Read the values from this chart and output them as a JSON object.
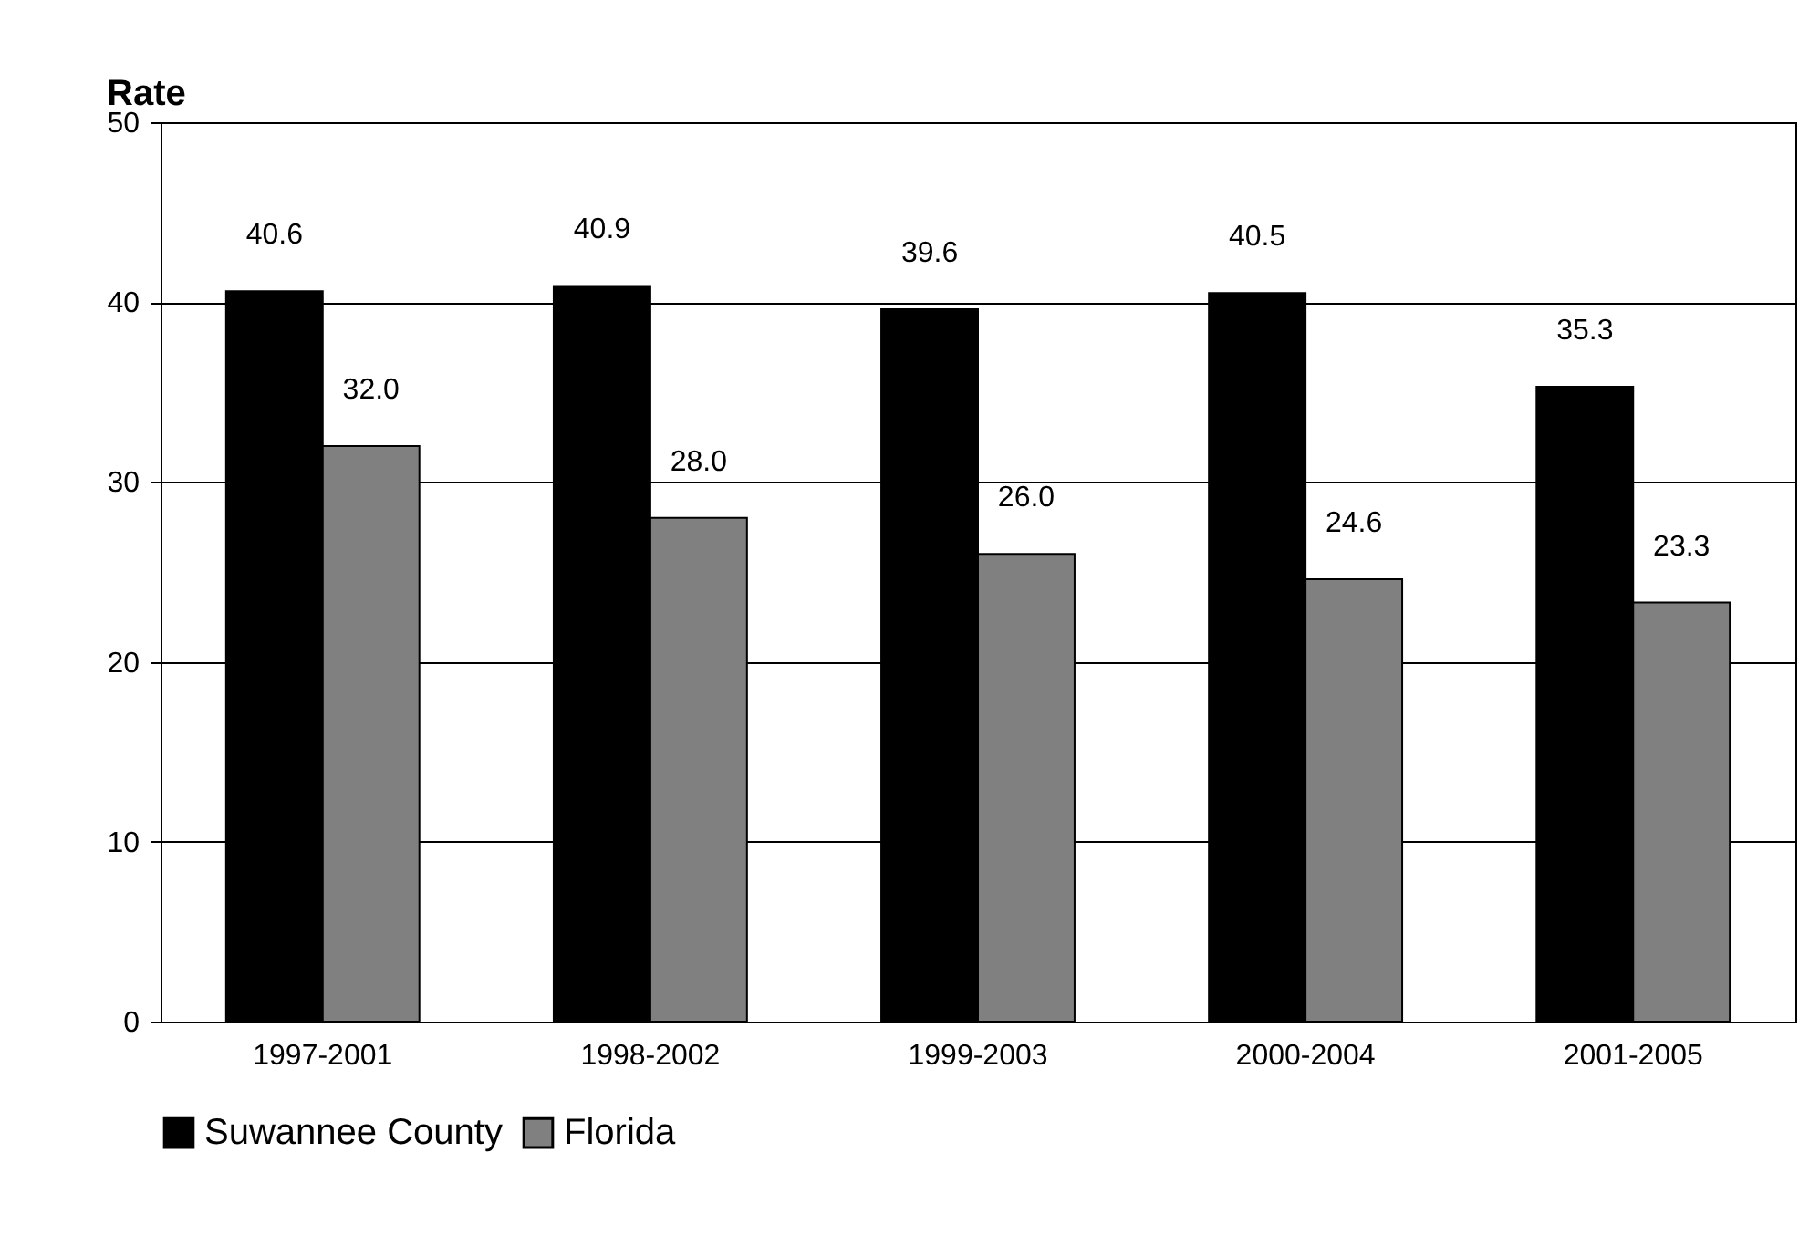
{
  "chart_data": {
    "type": "bar",
    "ylabel": "Rate",
    "categories": [
      "1997-2001",
      "1998-2002",
      "1999-2003",
      "2000-2004",
      "2001-2005"
    ],
    "series": [
      {
        "name": "Suwannee County",
        "color": "#000000",
        "values": [
          40.6,
          40.9,
          39.6,
          40.5,
          35.3
        ],
        "value_labels": [
          "40.6",
          "40.9",
          "39.6",
          "40.5",
          "35.3"
        ]
      },
      {
        "name": "Florida",
        "color": "#808080",
        "values": [
          32.0,
          28.0,
          26.0,
          24.6,
          23.3
        ],
        "value_labels": [
          "32.0",
          "28.0",
          "26.0",
          "24.6",
          "23.3"
        ]
      }
    ],
    "ylim": [
      0,
      50
    ],
    "yticks": [
      0,
      10,
      20,
      30,
      40,
      50
    ],
    "grid": "y",
    "legend": "bottom"
  }
}
